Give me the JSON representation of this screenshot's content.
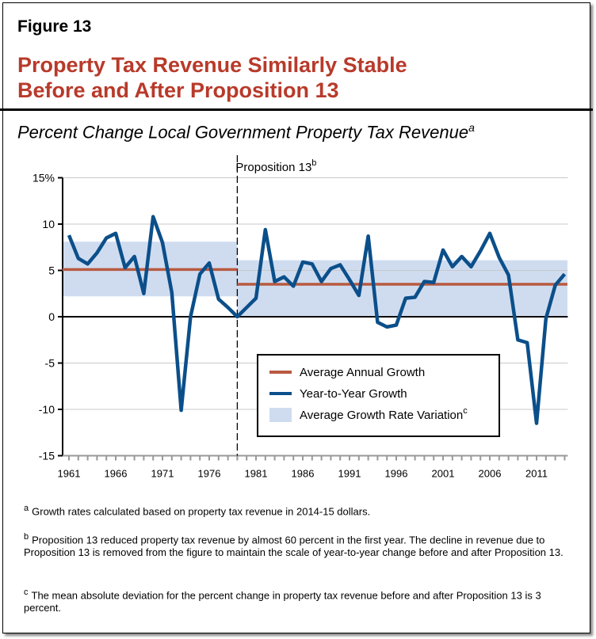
{
  "figure_label": "Figure 13",
  "title_line1": "Property Tax Revenue Similarly Stable",
  "title_line2": "Before and After Proposition 13",
  "subtitle": "Percent Change Local Government Property Tax Revenue",
  "subtitle_sup": "a",
  "colors": {
    "title": "#b83a2a",
    "line": "#0b4f8a",
    "average": "#b85a40",
    "band": "#cfdcf0"
  },
  "chart_data": {
    "type": "line",
    "ylim": [
      -15,
      15
    ],
    "yticks": [
      "15%",
      "10",
      "5",
      "0",
      "-5",
      "-10",
      "-15"
    ],
    "ytick_values": [
      15,
      10,
      5,
      0,
      -5,
      -10,
      -15
    ],
    "xticks": [
      "1961",
      "1966",
      "1971",
      "1976",
      "1981",
      "1986",
      "1991",
      "1996",
      "2001",
      "2006",
      "2011"
    ],
    "xrange": [
      1961,
      2014
    ],
    "annotation": {
      "label": "Proposition 13",
      "sup": "b",
      "year": 1979
    },
    "series": [
      {
        "name": "Year-to-Year Growth",
        "x": [
          1961,
          1962,
          1963,
          1964,
          1965,
          1966,
          1967,
          1968,
          1969,
          1970,
          1971,
          1972,
          1973,
          1974,
          1975,
          1976,
          1977,
          1978,
          1979,
          1980,
          1981,
          1982,
          1983,
          1984,
          1985,
          1986,
          1987,
          1988,
          1989,
          1990,
          1991,
          1992,
          1993,
          1994,
          1995,
          1996,
          1997,
          1998,
          1999,
          2000,
          2001,
          2002,
          2003,
          2004,
          2005,
          2006,
          2007,
          2008,
          2009,
          2010,
          2011,
          2012,
          2013,
          2014
        ],
        "values": [
          8.8,
          6.3,
          5.7,
          6.9,
          8.5,
          9.0,
          5.3,
          6.5,
          2.5,
          10.8,
          8.0,
          2.6,
          -10.1,
          0,
          4.6,
          5.8,
          1.9,
          1.0,
          0,
          1.0,
          2.0,
          9.4,
          3.8,
          4.3,
          3.3,
          5.9,
          5.7,
          3.8,
          5.2,
          5.6,
          4.0,
          2.3,
          8.7,
          -0.6,
          -1.1,
          -0.9,
          2.0,
          2.1,
          3.8,
          3.7,
          7.2,
          5.4,
          6.5,
          5.4,
          7.1,
          9.0,
          6.4,
          4.5,
          -2.5,
          -2.8,
          -11.5,
          -0.2,
          3.4,
          4.6
        ]
      },
      {
        "name": "Average Annual Growth",
        "segments": [
          {
            "from": 1960.3,
            "to": 1979,
            "value": 5.1
          },
          {
            "from": 1979,
            "to": 2014.3,
            "value": 3.5
          }
        ]
      },
      {
        "name": "Average Growth Rate Variation",
        "sup": "c",
        "bands": [
          {
            "from": 1960.3,
            "to": 1979,
            "low": 2.2,
            "high": 8.1
          },
          {
            "from": 1979,
            "to": 2014.3,
            "low": 0.1,
            "high": 6.1
          }
        ]
      }
    ],
    "legend": "bottom-right"
  },
  "footnotes": [
    {
      "mark": "a",
      "text": "Growth rates calculated based on property tax revenue in 2014-15 dollars."
    },
    {
      "mark": "b",
      "text": "Proposition 13 reduced property tax revenue by almost 60 percent in the first year. The decline in revenue due to Proposition 13 is removed from the figure to maintain the scale of year-to-year change before and after Proposition 13."
    },
    {
      "mark": "c",
      "text": "The mean absolute deviation for the percent change in property tax revenue before and after Proposition 13 is 3 percent."
    }
  ]
}
